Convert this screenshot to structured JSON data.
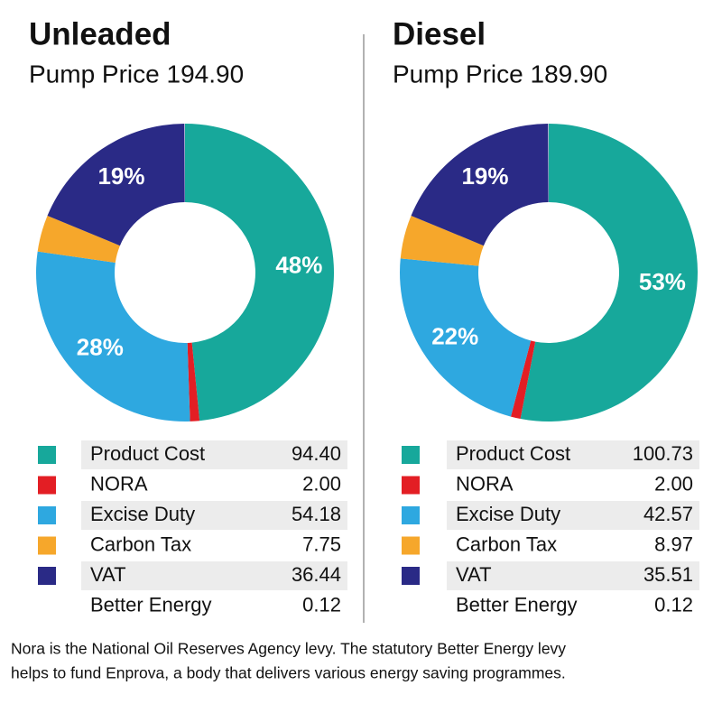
{
  "chart_data": [
    {
      "type": "pie",
      "donut": true,
      "title": "Unleaded",
      "subtitle": "Pump Price 194.90",
      "categories": [
        "Product Cost",
        "NORA",
        "Excise Duty",
        "Carbon Tax",
        "VAT",
        "Better Energy"
      ],
      "values": [
        94.4,
        2.0,
        54.18,
        7.75,
        36.44,
        0.12
      ],
      "value_labels": [
        "94.40",
        "2.00",
        "54.18",
        "7.75",
        "36.44",
        "0.12"
      ],
      "percent_labels": [
        "48%",
        null,
        "28%",
        null,
        "19%",
        null
      ],
      "colors": [
        "#17a89b",
        "#e31e24",
        "#2ea8e0",
        "#f6a72b",
        "#2a2a86",
        null
      ]
    },
    {
      "type": "pie",
      "donut": true,
      "title": "Diesel",
      "subtitle": "Pump Price 189.90",
      "categories": [
        "Product Cost",
        "NORA",
        "Excise Duty",
        "Carbon Tax",
        "VAT",
        "Better Energy"
      ],
      "values": [
        100.73,
        2.0,
        42.57,
        8.97,
        35.51,
        0.12
      ],
      "value_labels": [
        "100.73",
        "2.00",
        "42.57",
        "8.97",
        "35.51",
        "0.12"
      ],
      "percent_labels": [
        "53%",
        null,
        "22%",
        null,
        "19%",
        null
      ],
      "colors": [
        "#17a89b",
        "#e31e24",
        "#2ea8e0",
        "#f6a72b",
        "#2a2a86",
        null
      ]
    }
  ],
  "footnote": [
    "Nora is the National Oil Reserves Agency levy. The statutory Better Energy levy",
    "helps to fund Enprova, a body that delivers various energy saving programmes."
  ]
}
